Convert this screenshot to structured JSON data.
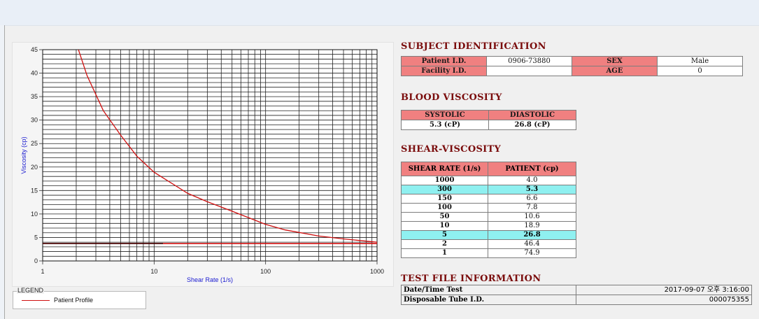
{
  "subject": {
    "title": "SUBJECT IDENTIFICATION",
    "patient_id_label": "Patient I.D.",
    "patient_id": "0906-73880",
    "sex_label": "SEX",
    "sex": "Male",
    "facility_id_label": "Facility I.D.",
    "facility_id": "",
    "age_label": "AGE",
    "age": "0"
  },
  "blood": {
    "title": "BLOOD VISCOSITY",
    "systolic_label": "SYSTOLIC",
    "diastolic_label": "DIASTOLIC",
    "systolic": "5.3 (cP)",
    "diastolic": "26.8 (cP)"
  },
  "shear": {
    "title": "SHEAR-VISCOSITY",
    "col_rate": "SHEAR RATE (1/s)",
    "col_patient": "PATIENT (cp)",
    "rows": [
      {
        "rate": "1000",
        "value": "4.0"
      },
      {
        "rate": "300",
        "value": "5.3"
      },
      {
        "rate": "150",
        "value": "6.6"
      },
      {
        "rate": "100",
        "value": "7.8"
      },
      {
        "rate": "50",
        "value": "10.6"
      },
      {
        "rate": "10",
        "value": "18.9"
      },
      {
        "rate": "5",
        "value": "26.8"
      },
      {
        "rate": "2",
        "value": "46.4"
      },
      {
        "rate": "1",
        "value": "74.9"
      }
    ]
  },
  "testfile": {
    "title": "TEST FILE INFORMATION",
    "datetime_label": "Date/Time Test",
    "datetime": "2017-09-07  오후 3:16:00",
    "tube_label": "Disposable Tube I.D.",
    "tube_id": "000075355"
  },
  "legend": {
    "title": "LEGEND",
    "label": "Patient Profile",
    "color": "#d01010"
  },
  "chart_data": {
    "type": "line",
    "xlabel": "Shear Rate (1/s)",
    "ylabel": "Viscosity (cp)",
    "xscale": "log",
    "xlim": [
      1,
      1000
    ],
    "ylim": [
      0,
      45
    ],
    "x_ticks": [
      "1",
      "10",
      "100",
      "1000"
    ],
    "y_ticks": [
      "0",
      "5",
      "10",
      "15",
      "20",
      "25",
      "30",
      "35",
      "40",
      "45"
    ],
    "grid": true,
    "series": [
      {
        "name": "Patient Profile",
        "color": "#d01010",
        "x": [
          2.0,
          2.5,
          3.5,
          5,
          7,
          10,
          20,
          30,
          50,
          100,
          150,
          300,
          500,
          1000
        ],
        "y": [
          46.4,
          39.5,
          32.0,
          26.8,
          22.3,
          18.9,
          14.4,
          12.6,
          10.6,
          7.8,
          6.6,
          5.3,
          4.7,
          4.0
        ]
      }
    ],
    "reference_lines": [
      {
        "color": "#d01010",
        "y": 3.7,
        "x_from": 1,
        "x_to": 1000
      },
      {
        "color": "#400000",
        "y": 3.7,
        "x_from": 1,
        "x_to": 12
      }
    ]
  }
}
